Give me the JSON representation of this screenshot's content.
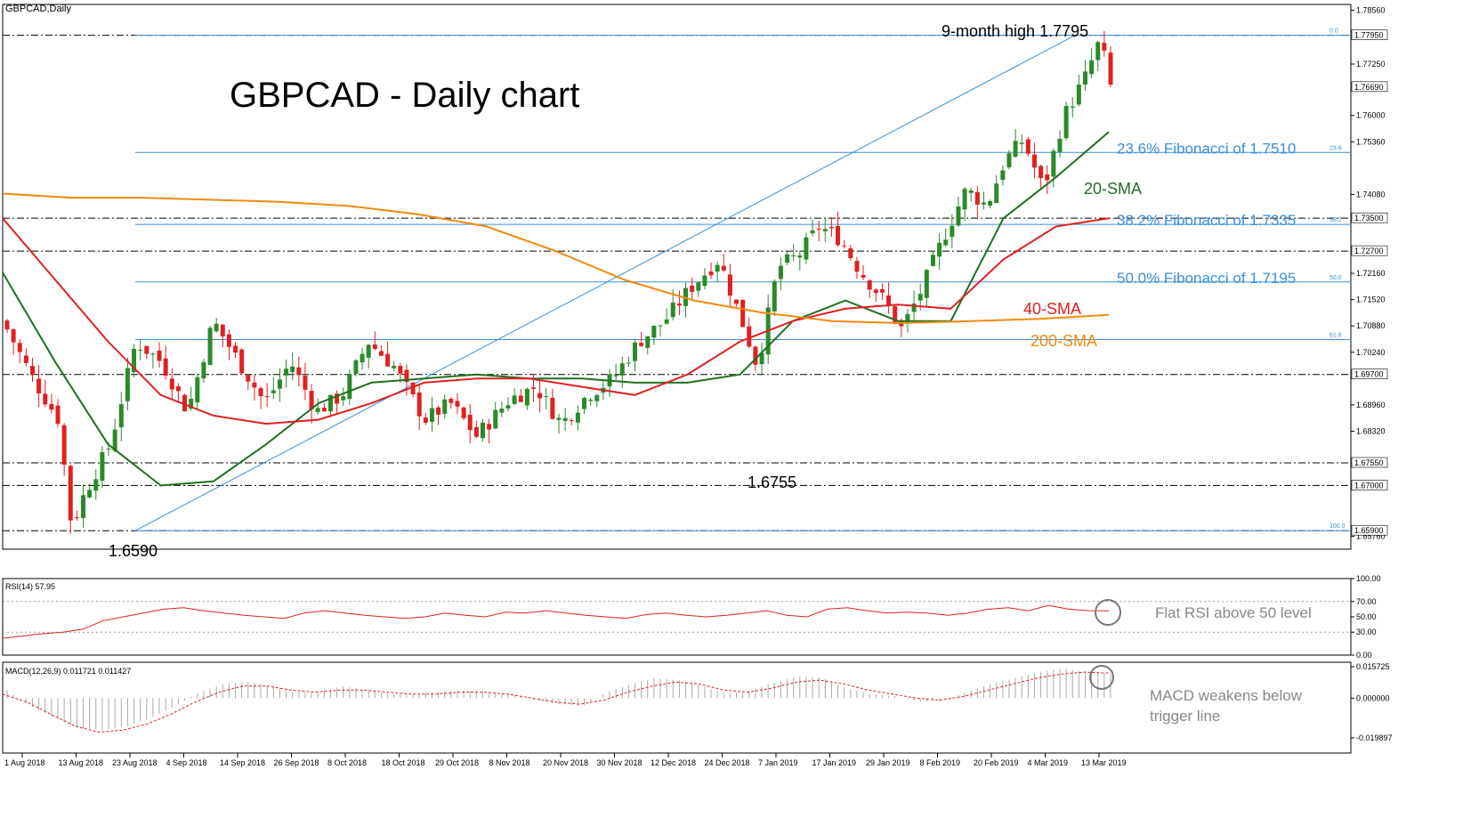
{
  "instrument_label": "GBPCAD,Daily",
  "title": "GBPCAD - Daily chart",
  "chart_data": {
    "type": "candlestick",
    "title": "GBPCAD - Daily chart",
    "price_axis": {
      "ylim": [
        1.6545,
        1.787
      ],
      "tick_labels": [
        "1.78560",
        "1.77250",
        "1.76000",
        "1.75360",
        "1.74080",
        "1.72160",
        "1.71520",
        "1.70880",
        "1.70240",
        "1.68960",
        "1.68320",
        "1.65760"
      ],
      "highlight_labels": [
        "1.77950",
        "1.76690",
        "1.73500",
        "1.72700",
        "1.69700",
        "1.67550",
        "1.67000",
        "1.65900"
      ]
    },
    "x_axis": {
      "date_labels": [
        "1 Aug 2018",
        "13 Aug 2018",
        "23 Aug 2018",
        "4 Sep 2018",
        "14 Sep 2018",
        "26 Sep 2018",
        "8 Oct 2018",
        "18 Oct 2018",
        "29 Oct 2018",
        "8 Nov 2018",
        "20 Nov 2018",
        "30 Nov 2018",
        "12 Dec 2018",
        "24 Dec 2018",
        "7 Jan 2019",
        "17 Jan 2019",
        "29 Jan 2019",
        "8 Feb 2019",
        "20 Feb 2019",
        "4 Mar 2019",
        "13 Mar 2019"
      ]
    },
    "close_path": [
      [
        0,
        1.708
      ],
      [
        10,
        1.696
      ],
      [
        20,
        1.686
      ],
      [
        25,
        1.66
      ],
      [
        30,
        1.668
      ],
      [
        40,
        1.68
      ],
      [
        50,
        1.705
      ],
      [
        60,
        1.7
      ],
      [
        70,
        1.688
      ],
      [
        80,
        1.71
      ],
      [
        90,
        1.7
      ],
      [
        100,
        1.69
      ],
      [
        110,
        1.7
      ],
      [
        120,
        1.688
      ],
      [
        130,
        1.692
      ],
      [
        140,
        1.705
      ],
      [
        150,
        1.699
      ],
      [
        162,
        1.686
      ],
      [
        172,
        1.69
      ],
      [
        182,
        1.682
      ],
      [
        195,
        1.691
      ],
      [
        205,
        1.694
      ],
      [
        215,
        1.685
      ],
      [
        225,
        1.692
      ],
      [
        235,
        1.696
      ],
      [
        245,
        1.705
      ],
      [
        255,
        1.71
      ],
      [
        265,
        1.718
      ],
      [
        276,
        1.725
      ],
      [
        285,
        1.71
      ],
      [
        291,
        1.699
      ],
      [
        299,
        1.723
      ],
      [
        307,
        1.726
      ],
      [
        315,
        1.733
      ],
      [
        323,
        1.73
      ],
      [
        331,
        1.722
      ],
      [
        339,
        1.716
      ],
      [
        347,
        1.708
      ],
      [
        355,
        1.718
      ],
      [
        363,
        1.73
      ],
      [
        372,
        1.742
      ],
      [
        380,
        1.738
      ],
      [
        387,
        1.749
      ],
      [
        394,
        1.754
      ],
      [
        402,
        1.742
      ],
      [
        410,
        1.76
      ],
      [
        418,
        1.769
      ],
      [
        424,
        1.7785
      ],
      [
        428,
        1.767
      ]
    ],
    "candle_count": 175,
    "series": [
      {
        "name": "20-SMA",
        "values": [
          1.7218,
          1.7,
          1.68,
          1.67,
          1.671,
          1.68,
          1.69,
          1.695,
          1.696,
          1.697,
          1.696,
          1.696,
          1.695,
          1.695,
          1.697,
          1.71,
          1.715,
          1.71,
          1.71,
          1.735,
          1.745,
          1.756
        ]
      },
      {
        "name": "40-SMA",
        "values": [
          1.735,
          1.72,
          1.705,
          1.692,
          1.687,
          1.685,
          1.686,
          1.69,
          1.695,
          1.696,
          1.696,
          1.694,
          1.692,
          1.697,
          1.705,
          1.71,
          1.713,
          1.714,
          1.713,
          1.725,
          1.733,
          1.735
        ]
      },
      {
        "name": "200-SMA",
        "values": [
          1.741,
          1.74,
          1.74,
          1.7395,
          1.739,
          1.738,
          1.736,
          1.733,
          1.727,
          1.72,
          1.715,
          1.712,
          1.71,
          1.7095,
          1.71,
          1.7105,
          1.7115
        ]
      }
    ],
    "fibonacci": [
      {
        "label": "23.6% Fibonacci of 1.7510",
        "level_label": "23.6",
        "value": 1.751
      },
      {
        "label": "38.2% Fibonacci of 1.7335",
        "level_label": "38.2",
        "value": 1.7335
      },
      {
        "label": "50.0% Fibonacci of 1.7195",
        "level_label": "50.0",
        "value": 1.7195
      },
      {
        "level_label": "61.8",
        "value": 1.7055
      },
      {
        "level_label": "0.0",
        "value": 1.7795
      },
      {
        "level_label": "100.0",
        "value": 1.659
      }
    ],
    "support_resistance": [
      1.7795,
      1.735,
      1.727,
      1.697,
      1.6755,
      1.67,
      1.659
    ],
    "annotations": [
      {
        "text": "9-month high 1.7795"
      },
      {
        "text": "1.6590"
      },
      {
        "text": "1.6755"
      },
      {
        "text": "20-SMA",
        "color": "#207020"
      },
      {
        "text": "40-SMA",
        "color": "#e02020"
      },
      {
        "text": "200-SMA",
        "color": "#f08a10"
      }
    ],
    "rsi": {
      "label": "RSI(14) 57.95",
      "tick_labels": [
        "100.00",
        "70.00",
        "50.00",
        "30.00",
        "0.00"
      ],
      "values": [
        22,
        25,
        28,
        30,
        34,
        45,
        50,
        55,
        60,
        62,
        58,
        55,
        52,
        50,
        48,
        55,
        58,
        55,
        52,
        50,
        48,
        50,
        55,
        52,
        50,
        56,
        55,
        58,
        55,
        52,
        50,
        48,
        53,
        55,
        52,
        50,
        52,
        55,
        58,
        52,
        50,
        60,
        62,
        58,
        55,
        56,
        55,
        52,
        55,
        60,
        62,
        58,
        65,
        60,
        58,
        57.95
      ],
      "annotation": "Flat RSI above 50 level"
    },
    "macd": {
      "label": "MACD(12,26,9) 0.011721 0.011427",
      "tick_labels": [
        "0.015725",
        "0.000000",
        "-0.019897"
      ],
      "histogram": [
        0.004,
        -0.004,
        -0.01,
        -0.015,
        -0.016,
        -0.014,
        -0.01,
        -0.004,
        0.003,
        0.007,
        0.008,
        0.006,
        0.003,
        0.003,
        0.006,
        0.004,
        0.002,
        0.002,
        0.003,
        0.004,
        0.003,
        0.002,
        -0.001,
        -0.003,
        -0.004,
        0.003,
        0.007,
        0.01,
        0.009,
        0.006,
        0.002,
        0.004,
        0.008,
        0.011,
        0.01,
        0.005,
        0.002,
        0.001,
        -0.002,
        -0.001,
        0.003,
        0.007,
        0.01,
        0.013,
        0.015,
        0.013,
        0.012
      ],
      "signal": [
        0.002,
        -0.002,
        -0.008,
        -0.014,
        -0.017,
        -0.016,
        -0.013,
        -0.008,
        -0.002,
        0.003,
        0.006,
        0.006,
        0.004,
        0.003,
        0.004,
        0.004,
        0.003,
        0.002,
        0.002,
        0.003,
        0.003,
        0.002,
        0.0,
        -0.002,
        -0.003,
        -0.001,
        0.003,
        0.006,
        0.008,
        0.007,
        0.004,
        0.003,
        0.005,
        0.008,
        0.009,
        0.007,
        0.004,
        0.002,
        0.0,
        -0.001,
        0.001,
        0.004,
        0.007,
        0.01,
        0.012,
        0.013,
        0.0125
      ],
      "annotation_line1": "MACD weakens below",
      "annotation_line2": "trigger line"
    },
    "colors": {
      "bull": "#2a8a2a",
      "bear": "#e02020",
      "sma20": "#207020",
      "sma40": "#e02020",
      "sma200": "#f08a10",
      "fib": "#3b8fd9",
      "fib_text": "#3b8fd9"
    }
  }
}
